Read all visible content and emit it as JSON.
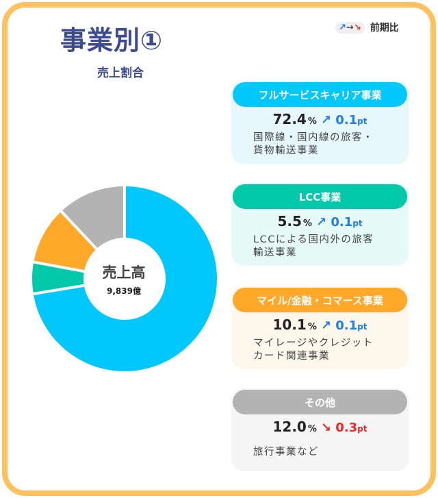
{
  "header": {
    "title": "事業別①",
    "subtitle": "売上割合"
  },
  "legend": {
    "arrows": [
      "↗",
      "→",
      "↘"
    ],
    "label": "前期比",
    "colors": {
      "up": "#1E7BF0",
      "flat": "#444444",
      "down": "#F02828"
    }
  },
  "chart_data": {
    "type": "pie",
    "style": "donut",
    "center_label": "売上高",
    "center_value": "9,839億",
    "categories": [
      "フルサービスキャリア事業",
      "LCC事業",
      "マイル/金融・コマース事業",
      "その他"
    ],
    "values": [
      72.4,
      5.5,
      10.1,
      12.0
    ],
    "colors": [
      "#00C8FA",
      "#00C8A8",
      "#FFA82A",
      "#B3B3B3"
    ],
    "start": "top",
    "direction": "clockwise"
  },
  "segments": [
    {
      "name": "フルサービスキャリア事業",
      "percent": "72.4",
      "unit": "%",
      "trend": "up",
      "arrow": "↗",
      "change": "0.1",
      "change_unit": "pt",
      "desc1": "国際線・国内線の旅客・",
      "desc2": "貨物輸送事業",
      "color": "#00C8FA",
      "bg": "#E6F8FE"
    },
    {
      "name": "LCC事業",
      "percent": "5.5",
      "unit": "%",
      "trend": "up",
      "arrow": "↗",
      "change": "0.1",
      "change_unit": "pt",
      "desc1": "LCCによる国内外の旅客",
      "desc2": "輸送事業",
      "color": "#00C8A8",
      "bg": "#E6FAF7"
    },
    {
      "name": "マイル/金融・コマース事業",
      "percent": "10.1",
      "unit": "%",
      "trend": "up",
      "arrow": "↗",
      "change": "0.1",
      "change_unit": "pt",
      "desc1": "マイレージやクレジット",
      "desc2": "カード関連事業",
      "color": "#FFA82A",
      "bg": "#FEF7EC"
    },
    {
      "name": "その他",
      "percent": "12.0",
      "unit": "%",
      "trend": "down",
      "arrow": "↘",
      "change": "0.3",
      "change_unit": "pt",
      "desc1": "旅行事業など",
      "desc2": "",
      "color": "#B3B3B3",
      "bg": "#F5F5F5"
    }
  ]
}
